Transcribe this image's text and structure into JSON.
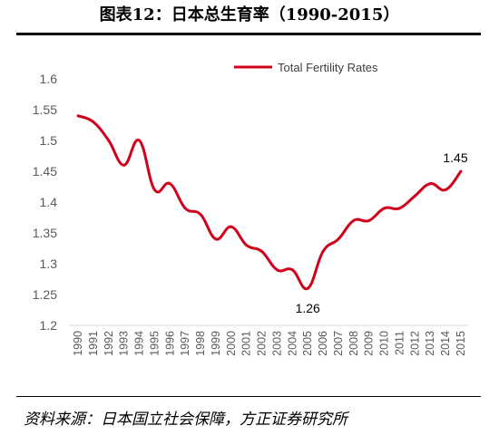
{
  "header": {
    "title": "图表12：日本总生育率（1990-2015）"
  },
  "footer": {
    "source": "资料来源：日本国立社会保障，方正证券研究所"
  },
  "chart_data": {
    "type": "line",
    "title": "",
    "xlabel": "",
    "ylabel": "",
    "x": [
      "1990",
      "1991",
      "1992",
      "1993",
      "1994",
      "1995",
      "1996",
      "1997",
      "1998",
      "1999",
      "2000",
      "2001",
      "2002",
      "2003",
      "2004",
      "2005",
      "2006",
      "2007",
      "2008",
      "2009",
      "2010",
      "2011",
      "2012",
      "2013",
      "2014",
      "2015"
    ],
    "series": [
      {
        "name": "Total Fertility Rates",
        "color": "#d0021b",
        "values": [
          1.54,
          1.53,
          1.5,
          1.46,
          1.5,
          1.42,
          1.43,
          1.39,
          1.38,
          1.34,
          1.36,
          1.33,
          1.32,
          1.29,
          1.29,
          1.26,
          1.32,
          1.34,
          1.37,
          1.37,
          1.39,
          1.39,
          1.41,
          1.43,
          1.42,
          1.45
        ]
      }
    ],
    "ylim": [
      1.2,
      1.6
    ],
    "yticks": [
      "1.2",
      "1.25",
      "1.3",
      "1.35",
      "1.4",
      "1.45",
      "1.5",
      "1.55",
      "1.6"
    ],
    "grid": false,
    "legend_position": "top-right",
    "annotations": [
      {
        "x": "2005",
        "y": 1.26,
        "text": "1.26"
      },
      {
        "x": "2015",
        "y": 1.45,
        "text": "1.45"
      }
    ]
  }
}
